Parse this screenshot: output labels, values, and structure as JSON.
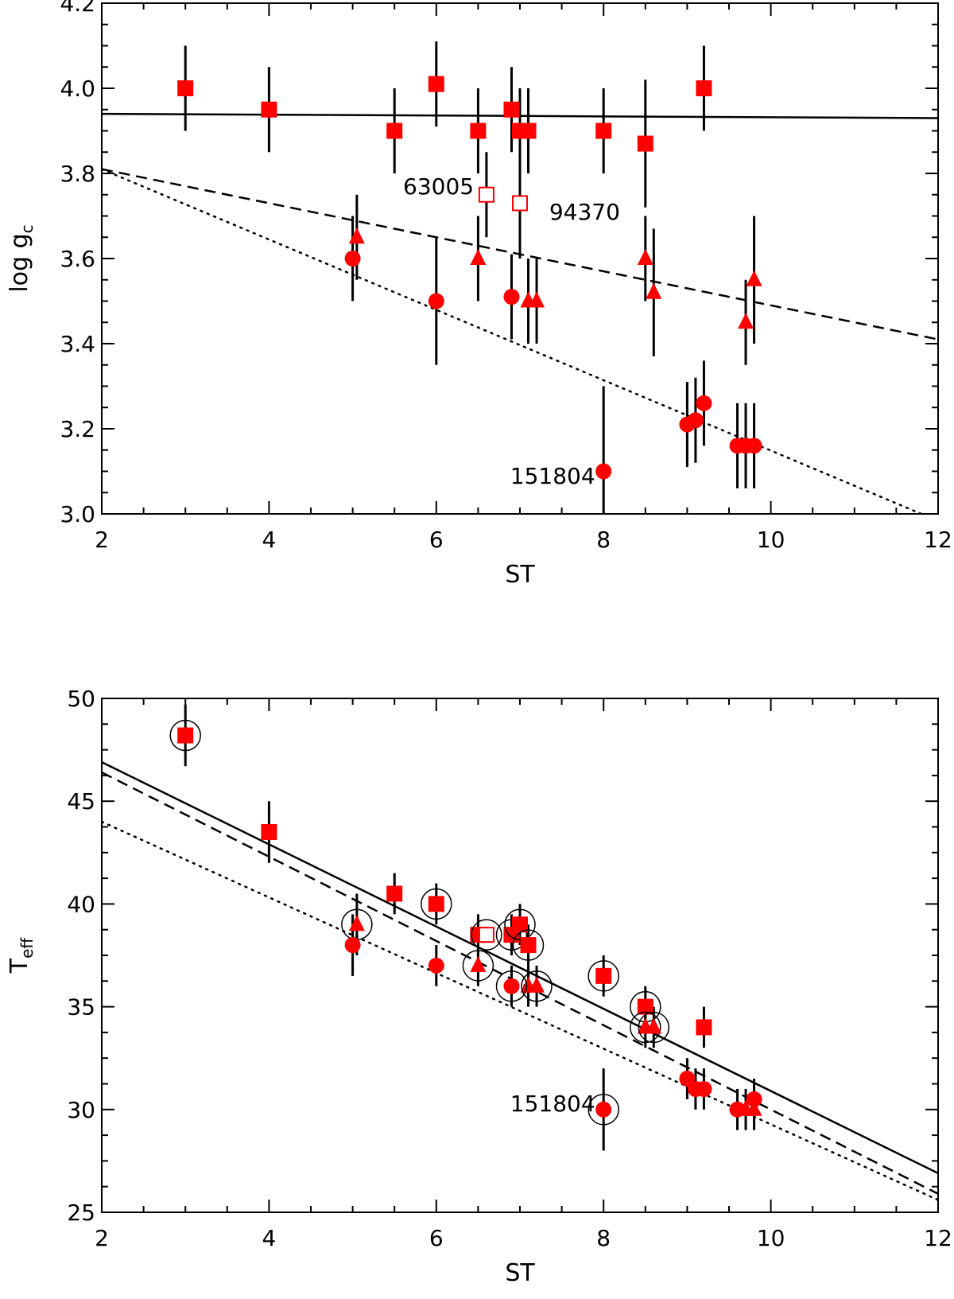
{
  "colors": {
    "marker": "#ff0000",
    "line": "#000000",
    "background": "#ffffff"
  },
  "chart_data": [
    {
      "id": "gravity",
      "type": "scatter",
      "xlabel": "ST",
      "ylabel_main": "log g",
      "ylabel_sub": "c",
      "xlim": [
        2,
        12
      ],
      "ylim": [
        3.0,
        4.2
      ],
      "xticks": [
        2,
        4,
        6,
        8,
        10,
        12
      ],
      "xtick_labels": [
        "2",
        "4",
        "6",
        "8",
        "10",
        "12"
      ],
      "yticks": [
        3.0,
        3.2,
        3.4,
        3.6,
        3.8,
        4.0,
        4.2
      ],
      "ytick_labels": [
        "3.0",
        "3.2",
        "3.4",
        "3.6",
        "3.8",
        "4.0",
        "4.2"
      ],
      "series": [
        {
          "name": "squares",
          "marker": "square",
          "points": [
            {
              "x": 3.0,
              "y": 4.0,
              "err": 0.1
            },
            {
              "x": 4.0,
              "y": 3.95,
              "err": 0.1
            },
            {
              "x": 5.5,
              "y": 3.9,
              "err": 0.1
            },
            {
              "x": 6.0,
              "y": 4.01,
              "err": 0.1
            },
            {
              "x": 6.5,
              "y": 3.9,
              "err": 0.1
            },
            {
              "x": 6.9,
              "y": 3.95,
              "err": 0.1
            },
            {
              "x": 7.0,
              "y": 3.9,
              "err": 0.1
            },
            {
              "x": 7.1,
              "y": 3.9,
              "err": 0.1
            },
            {
              "x": 8.0,
              "y": 3.9,
              "err": 0.1
            },
            {
              "x": 8.5,
              "y": 3.87,
              "err": 0.15
            },
            {
              "x": 9.2,
              "y": 4.0,
              "err": 0.1
            }
          ]
        },
        {
          "name": "open-squares",
          "marker": "open-square",
          "points": [
            {
              "x": 6.6,
              "y": 3.75,
              "err": 0.1
            },
            {
              "x": 7.0,
              "y": 3.73,
              "err": 0.13
            }
          ]
        },
        {
          "name": "triangles",
          "marker": "triangle",
          "points": [
            {
              "x": 5.05,
              "y": 3.65,
              "err": 0.1
            },
            {
              "x": 6.5,
              "y": 3.6,
              "err": 0.1
            },
            {
              "x": 7.1,
              "y": 3.5,
              "err": 0.1
            },
            {
              "x": 7.2,
              "y": 3.5,
              "err": 0.1
            },
            {
              "x": 8.5,
              "y": 3.6,
              "err": 0.1
            },
            {
              "x": 8.6,
              "y": 3.52,
              "err": 0.15
            },
            {
              "x": 9.7,
              "y": 3.45,
              "err": 0.1
            },
            {
              "x": 9.8,
              "y": 3.55,
              "err": 0.15
            }
          ]
        },
        {
          "name": "circles",
          "marker": "circle",
          "points": [
            {
              "x": 5.0,
              "y": 3.6,
              "err": 0.1
            },
            {
              "x": 6.0,
              "y": 3.5,
              "err": 0.15
            },
            {
              "x": 6.9,
              "y": 3.51,
              "err": 0.1
            },
            {
              "x": 8.0,
              "y": 3.1,
              "err": 0.2
            },
            {
              "x": 9.0,
              "y": 3.21,
              "err": 0.1
            },
            {
              "x": 9.1,
              "y": 3.22,
              "err": 0.1
            },
            {
              "x": 9.2,
              "y": 3.26,
              "err": 0.1
            },
            {
              "x": 9.6,
              "y": 3.16,
              "err": 0.1
            },
            {
              "x": 9.7,
              "y": 3.16,
              "err": 0.1
            },
            {
              "x": 9.8,
              "y": 3.16,
              "err": 0.1
            }
          ]
        }
      ],
      "lines": [
        {
          "name": "solid-fit",
          "style": "solid",
          "x": [
            2,
            12
          ],
          "y": [
            3.94,
            3.93
          ]
        },
        {
          "name": "dashed-fit",
          "style": "dashed",
          "x": [
            2,
            12
          ],
          "y": [
            3.81,
            3.41
          ]
        },
        {
          "name": "dotted-fit",
          "style": "dotted",
          "x": [
            2,
            11.8
          ],
          "y": [
            3.81,
            3.0
          ]
        }
      ],
      "annotations": [
        {
          "text": "63005",
          "x": 6.45,
          "y": 3.77,
          "anchor": "end"
        },
        {
          "text": "94370",
          "x": 7.35,
          "y": 3.71,
          "anchor": "start"
        },
        {
          "text": "151804",
          "x": 7.9,
          "y": 3.09,
          "anchor": "end"
        }
      ]
    },
    {
      "id": "temperature",
      "type": "scatter",
      "xlabel": "ST",
      "ylabel_main": "T",
      "ylabel_sub": "eff",
      "xlim": [
        2,
        12
      ],
      "ylim": [
        25,
        50
      ],
      "xticks": [
        2,
        4,
        6,
        8,
        10,
        12
      ],
      "xtick_labels": [
        "2",
        "4",
        "6",
        "8",
        "10",
        "12"
      ],
      "yticks": [
        25,
        30,
        35,
        40,
        45,
        50
      ],
      "ytick_labels": [
        "25",
        "30",
        "35",
        "40",
        "45",
        "50"
      ],
      "series": [
        {
          "name": "squares",
          "marker": "square",
          "points": [
            {
              "x": 3.0,
              "y": 48.2,
              "err": 1.5,
              "ring": true
            },
            {
              "x": 4.0,
              "y": 43.5,
              "err": 1.5
            },
            {
              "x": 5.5,
              "y": 40.5,
              "err": 1.0
            },
            {
              "x": 6.0,
              "y": 40.0,
              "err": 1.0,
              "ring": true
            },
            {
              "x": 6.5,
              "y": 38.5,
              "err": 1.0
            },
            {
              "x": 6.9,
              "y": 38.5,
              "err": 1.0,
              "ring": true
            },
            {
              "x": 7.0,
              "y": 39.0,
              "err": 1.0,
              "ring": true
            },
            {
              "x": 7.1,
              "y": 38.0,
              "err": 1.0,
              "ring": true
            },
            {
              "x": 8.0,
              "y": 36.5,
              "err": 1.0,
              "ring": true
            },
            {
              "x": 8.5,
              "y": 35.0,
              "err": 1.0,
              "ring": true
            },
            {
              "x": 9.2,
              "y": 34.0,
              "err": 1.0
            }
          ]
        },
        {
          "name": "open-squares",
          "marker": "open-square",
          "points": [
            {
              "x": 6.6,
              "y": 38.5,
              "err": 0,
              "ring": true
            }
          ]
        },
        {
          "name": "triangles",
          "marker": "triangle",
          "points": [
            {
              "x": 5.05,
              "y": 39.0,
              "err": 1.5,
              "ring": true
            },
            {
              "x": 6.5,
              "y": 37.0,
              "err": 1.0,
              "ring": true
            },
            {
              "x": 7.1,
              "y": 36.0,
              "err": 1.0
            },
            {
              "x": 7.2,
              "y": 36.0,
              "err": 1.0,
              "ring": true
            },
            {
              "x": 8.5,
              "y": 34.0,
              "err": 1.0,
              "ring": true
            },
            {
              "x": 8.6,
              "y": 34.0,
              "err": 1.0,
              "ring": true
            },
            {
              "x": 9.7,
              "y": 30.0,
              "err": 1.0
            },
            {
              "x": 9.8,
              "y": 30.0,
              "err": 1.0
            }
          ]
        },
        {
          "name": "circles",
          "marker": "circle",
          "points": [
            {
              "x": 5.0,
              "y": 38.0,
              "err": 1.5
            },
            {
              "x": 6.0,
              "y": 37.0,
              "err": 1.0
            },
            {
              "x": 6.9,
              "y": 36.0,
              "err": 1.0,
              "ring": true
            },
            {
              "x": 8.0,
              "y": 30.0,
              "err": 2.0,
              "ring": true
            },
            {
              "x": 9.0,
              "y": 31.5,
              "err": 1.0
            },
            {
              "x": 9.1,
              "y": 31.0,
              "err": 1.0
            },
            {
              "x": 9.2,
              "y": 31.0,
              "err": 1.0
            },
            {
              "x": 9.6,
              "y": 30.0,
              "err": 1.0
            },
            {
              "x": 9.8,
              "y": 30.5,
              "err": 1.0
            }
          ]
        }
      ],
      "lines": [
        {
          "name": "solid-fit",
          "style": "solid",
          "x": [
            2,
            12
          ],
          "y": [
            46.9,
            26.9
          ]
        },
        {
          "name": "dashed-fit",
          "style": "dashed",
          "x": [
            2,
            12
          ],
          "y": [
            46.4,
            25.9
          ]
        },
        {
          "name": "dotted-fit",
          "style": "dotted",
          "x": [
            2,
            12
          ],
          "y": [
            44.0,
            25.6
          ]
        }
      ],
      "annotations": [
        {
          "text": "151804",
          "x": 7.9,
          "y": 30.3,
          "anchor": "end"
        }
      ]
    }
  ]
}
